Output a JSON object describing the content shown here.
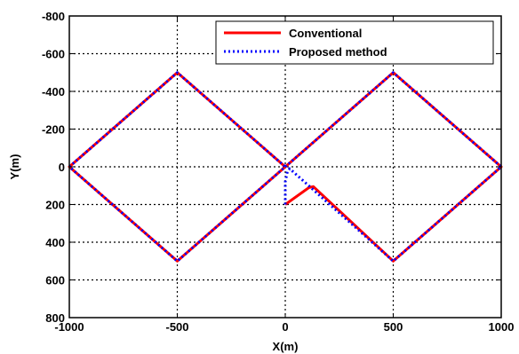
{
  "chart_data": {
    "type": "line",
    "title": "",
    "xlabel": "X(m)",
    "ylabel": "Y(m)",
    "xlim": [
      -1000,
      1000
    ],
    "ylim": [
      800,
      -800
    ],
    "y_axis_reversed": true,
    "grid": true,
    "legend_position": "top-right",
    "xticks": [
      -1000,
      -500,
      0,
      500,
      1000
    ],
    "xtick_labels": [
      "-1000",
      "-500",
      "0",
      "500",
      "1000"
    ],
    "yticks": [
      -800,
      -600,
      -400,
      -200,
      0,
      200,
      400,
      600,
      800
    ],
    "ytick_labels": [
      "-800",
      "-600",
      "-400",
      "-200",
      "0",
      "200",
      "400",
      "600",
      "800"
    ],
    "series": [
      {
        "name": "Conventional",
        "color": "#ff0000",
        "style": "solid",
        "points": [
          [
            0,
            200
          ],
          [
            110,
            110
          ],
          [
            130,
            105
          ],
          [
            500,
            500
          ],
          [
            1000,
            0
          ],
          [
            500,
            -500
          ],
          [
            0,
            0
          ],
          [
            -500,
            500
          ],
          [
            -1000,
            0
          ],
          [
            -500,
            -500
          ],
          [
            0,
            0
          ]
        ]
      },
      {
        "name": "Proposed method",
        "color": "#0000ff",
        "style": "dotted",
        "points": [
          [
            0,
            200
          ],
          [
            0,
            80
          ],
          [
            10,
            25
          ],
          [
            20,
            10
          ],
          [
            500,
            500
          ],
          [
            1000,
            0
          ],
          [
            500,
            -500
          ],
          [
            0,
            0
          ],
          [
            -500,
            500
          ],
          [
            -1000,
            0
          ],
          [
            -500,
            -500
          ],
          [
            0,
            0
          ]
        ]
      }
    ]
  }
}
